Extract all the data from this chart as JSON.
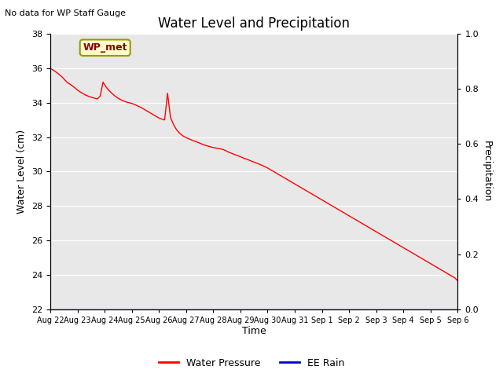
{
  "title": "Water Level and Precipitation",
  "subtitle": "No data for WP Staff Gauge",
  "ylabel_left": "Water Level (cm)",
  "ylabel_right": "Precipitation",
  "xlabel": "Time",
  "ylim_left": [
    22,
    38
  ],
  "ylim_right": [
    0.0,
    1.0
  ],
  "yticks_left": [
    22,
    24,
    26,
    28,
    30,
    32,
    34,
    36,
    38
  ],
  "yticks_right": [
    0.0,
    0.2,
    0.4,
    0.6,
    0.8,
    1.0
  ],
  "x_tick_labels": [
    "Aug 22",
    "Aug 23",
    "Aug 24",
    "Aug 25",
    "Aug 26",
    "Aug 27",
    "Aug 28",
    "Aug 29",
    "Aug 30",
    "Aug 31",
    "Sep 1",
    "Sep 2",
    "Sep 3",
    "Sep 4",
    "Sep 5",
    "Sep 6"
  ],
  "legend_items": [
    "Water Pressure",
    "EE Rain"
  ],
  "legend_colors": [
    "#ff0000",
    "#0000cd"
  ],
  "wp_met_label": "WP_met",
  "wp_met_bg": "#ffffcc",
  "wp_met_border": "#999900",
  "wp_met_text_color": "#8B0000",
  "background_color": "#e8e8e8",
  "line_color_water": "#ff0000",
  "line_color_rain": "#0000cd",
  "water_pressure": [
    36.0,
    35.9,
    35.78,
    35.65,
    35.5,
    35.32,
    35.15,
    35.05,
    34.92,
    34.78,
    34.65,
    34.55,
    34.45,
    34.38,
    34.32,
    34.27,
    34.22,
    34.38,
    35.2,
    34.92,
    34.72,
    34.55,
    34.4,
    34.28,
    34.18,
    34.1,
    34.04,
    34.0,
    33.95,
    33.88,
    33.8,
    33.72,
    33.62,
    33.52,
    33.42,
    33.32,
    33.22,
    33.12,
    33.05,
    33.0,
    34.55,
    33.15,
    32.75,
    32.45,
    32.25,
    32.1,
    32.0,
    31.92,
    31.85,
    31.78,
    31.72,
    31.65,
    31.58,
    31.52,
    31.47,
    31.42,
    31.38,
    31.35,
    31.32,
    31.28,
    31.2,
    31.12,
    31.05,
    30.98,
    30.92,
    30.85,
    30.78,
    30.72,
    30.65,
    30.58,
    30.52,
    30.45,
    30.38,
    30.3,
    30.22,
    30.12,
    30.02,
    29.92,
    29.82,
    29.72,
    29.62,
    29.52,
    29.42,
    29.32,
    29.22,
    29.12,
    29.02,
    28.92,
    28.82,
    28.72,
    28.62,
    28.52,
    28.42,
    28.32,
    28.22,
    28.12,
    28.02,
    27.92,
    27.82,
    27.72,
    27.62,
    27.52,
    27.42,
    27.32,
    27.22,
    27.12,
    27.02,
    26.92,
    26.82,
    26.72,
    26.62,
    26.52,
    26.42,
    26.32,
    26.22,
    26.12,
    26.02,
    25.92,
    25.82,
    25.72,
    25.62,
    25.52,
    25.42,
    25.32,
    25.22,
    25.12,
    25.02,
    24.92,
    24.82,
    24.72,
    24.62,
    24.52,
    24.42,
    24.32,
    24.22,
    24.12,
    24.02,
    23.92,
    23.82,
    23.65
  ],
  "rain": [
    0,
    0,
    0,
    0,
    0,
    0,
    0,
    0,
    0,
    0,
    0,
    0,
    0,
    0,
    0,
    0,
    0,
    0,
    0,
    0,
    0,
    0,
    0,
    0,
    0,
    0,
    0,
    0,
    0,
    0,
    0,
    0,
    0,
    0,
    0,
    0,
    0,
    0,
    0,
    0,
    0,
    0,
    0,
    0,
    0,
    0,
    0,
    0,
    0,
    0,
    0,
    0,
    0,
    0,
    0,
    0,
    0,
    0,
    0,
    0,
    0,
    0,
    0,
    0,
    0,
    0,
    0,
    0,
    0,
    0,
    0,
    0,
    0,
    0,
    0,
    0,
    0,
    0,
    0,
    0,
    0,
    0,
    0,
    0,
    0,
    0,
    0,
    0,
    0,
    0,
    0,
    0,
    0,
    0,
    0,
    0,
    0,
    0,
    0,
    0,
    0,
    0,
    0,
    0,
    0,
    0,
    0,
    0,
    0,
    0,
    0,
    0,
    0,
    0,
    0,
    0,
    0,
    0,
    0,
    0,
    0,
    0,
    0,
    0,
    0,
    0,
    0,
    0,
    0,
    0,
    0,
    0,
    0,
    0,
    0,
    0,
    0,
    0,
    0,
    0
  ]
}
